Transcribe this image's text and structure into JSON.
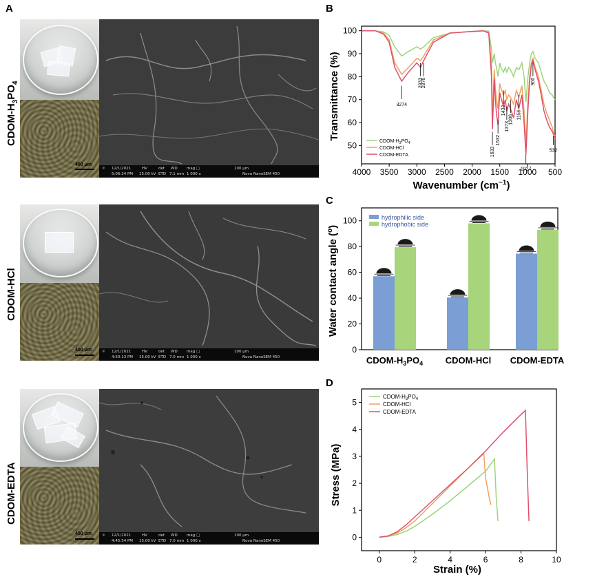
{
  "panels": {
    "A": "A",
    "B": "B",
    "C": "C",
    "D": "D"
  },
  "row_labels": {
    "h3po4_main": "CDOM-H",
    "h3po4_sub3": "3",
    "h3po4_po": "PO",
    "h3po4_sub4": "4",
    "hcl": "CDOM-HCl",
    "edta": "CDOM-EDTA"
  },
  "microscope_scale": "400 μm",
  "sem_scale": "100 μm",
  "sem_rows": [
    {
      "date": "12/1/2021",
      "time": "5:06:24 PM",
      "hv": "15.00 kV",
      "det": "ETD",
      "wd": "7.1 mm",
      "mag": "1 000 x",
      "instrument": "Nova NanoSEM 450"
    },
    {
      "date": "12/1/2021",
      "time": "4:50:13 PM",
      "hv": "15.00 kV",
      "det": "ETD",
      "wd": "7.0 mm",
      "mag": "1 000 x",
      "instrument": "Nova NanoSEM 450"
    },
    {
      "date": "12/1/2021",
      "time": "4:45:54 PM",
      "hv": "15.00 kV",
      "det": "ETD",
      "wd": "7.0 mm",
      "mag": "1 000 x",
      "instrument": "Nova NanoSEM 450"
    }
  ],
  "sem_headers": {
    "hv": "HV",
    "det": "det",
    "wd": "WD",
    "mag": "mag ▢"
  },
  "colors": {
    "green": "#9dd47a",
    "orange": "#f0a060",
    "red": "#e0506a",
    "blue": "#7b9fd4",
    "lightgreen": "#a8d47c"
  },
  "chart_data": [
    {
      "type": "line",
      "panel": "B",
      "xlabel": "Wavenumber (cm",
      "xlabel_sup": "−1",
      "xlabel_end": ")",
      "ylabel": "Transmittance (%)",
      "xlim": [
        4000,
        500
      ],
      "ylim": [
        42,
        102
      ],
      "xticks": [
        4000,
        3500,
        3000,
        2500,
        2000,
        1500,
        1000,
        500
      ],
      "yticks": [
        50,
        60,
        70,
        80,
        90,
        100
      ],
      "legend": {
        "placement": "lower-left",
        "entries": [
          "CDOM-H3PO4",
          "CDOM-HCl",
          "CDOM-EDTA"
        ]
      },
      "legend_text": {
        "h3po4_a": "CDOM-H",
        "h3po4_b": "3",
        "h3po4_c": "PO",
        "h3po4_d": "4",
        "hcl": "CDOM-HCl",
        "edta": "CDOM-EDTA"
      },
      "annotations": [
        "3274",
        "2933",
        "2876",
        "1633",
        "1532",
        "1432",
        "1373",
        "1306",
        "1156",
        "1027",
        "900",
        "532"
      ],
      "series": [
        {
          "name": "CDOM-H3PO4",
          "color": "#9dd47a",
          "x": [
            4000,
            3750,
            3600,
            3500,
            3400,
            3274,
            3150,
            3000,
            2933,
            2876,
            2700,
            2400,
            2100,
            1800,
            1700,
            1650,
            1633,
            1600,
            1580,
            1560,
            1532,
            1500,
            1480,
            1432,
            1400,
            1373,
            1340,
            1306,
            1250,
            1200,
            1156,
            1100,
            1060,
            1027,
            990,
            960,
            930,
            900,
            860,
            800,
            750,
            700,
            650,
            600,
            550,
            532,
            500
          ],
          "y": [
            100,
            100,
            99.5,
            98,
            93,
            89,
            91,
            93,
            92,
            93,
            97,
            99,
            99.5,
            100,
            99.8,
            92,
            86,
            90,
            86,
            84,
            80,
            86,
            84,
            82,
            84,
            82,
            84,
            83,
            80,
            84,
            83,
            86,
            80,
            69,
            80,
            86,
            90,
            91,
            88,
            86,
            82,
            78,
            76,
            73,
            72,
            71,
            70
          ]
        },
        {
          "name": "CDOM-HCl",
          "color": "#f0a060",
          "x": [
            4000,
            3750,
            3600,
            3500,
            3400,
            3274,
            3150,
            3000,
            2933,
            2876,
            2700,
            2400,
            2100,
            1800,
            1700,
            1650,
            1633,
            1600,
            1580,
            1560,
            1532,
            1500,
            1480,
            1432,
            1400,
            1373,
            1340,
            1306,
            1250,
            1200,
            1156,
            1100,
            1060,
            1027,
            990,
            960,
            930,
            900,
            860,
            800,
            750,
            700,
            650,
            600,
            550,
            532,
            500
          ],
          "y": [
            100,
            100,
            99,
            96,
            86,
            81,
            84,
            88,
            87,
            89,
            96,
            99,
            99.5,
            100,
            99.5,
            85,
            62,
            83,
            75,
            70,
            66,
            77,
            75,
            72,
            74,
            70,
            72,
            71,
            68,
            74,
            71,
            76,
            65,
            51,
            70,
            80,
            86,
            88,
            84,
            80,
            74,
            68,
            64,
            61,
            58,
            56,
            54
          ]
        },
        {
          "name": "CDOM-EDTA",
          "color": "#e0506a",
          "x": [
            4000,
            3750,
            3600,
            3500,
            3400,
            3274,
            3150,
            3000,
            2933,
            2876,
            2700,
            2400,
            2100,
            1800,
            1700,
            1650,
            1633,
            1600,
            1580,
            1560,
            1532,
            1500,
            1480,
            1432,
            1400,
            1373,
            1340,
            1306,
            1250,
            1200,
            1156,
            1100,
            1060,
            1027,
            990,
            960,
            930,
            900,
            860,
            800,
            750,
            700,
            650,
            600,
            550,
            532,
            500
          ],
          "y": [
            100,
            100,
            98.5,
            95,
            84,
            78,
            82,
            86,
            84,
            87,
            95,
            99,
            99.5,
            100,
            99,
            80,
            57,
            79,
            70,
            64,
            59,
            73,
            71,
            67,
            70,
            65,
            68,
            66,
            62,
            70,
            66,
            72,
            60,
            46,
            66,
            78,
            85,
            87,
            83,
            78,
            72,
            65,
            61,
            58,
            56,
            55,
            53
          ]
        }
      ]
    },
    {
      "type": "bar",
      "panel": "C",
      "ylabel": "Water contact angle (°)",
      "ylabel_a": "Water contact angle (",
      "ylabel_sup": "o",
      "ylabel_b": ")",
      "ylim": [
        0,
        110
      ],
      "yticks": [
        0,
        20,
        40,
        60,
        80,
        100
      ],
      "categories_a": [
        "CDOM-H",
        "CDOM-HCl",
        "CDOM-EDTA"
      ],
      "cat_sub": {
        "sub3": "3",
        "po": "PO",
        "sub4": "4"
      },
      "legend": {
        "placement": "top-left",
        "entries": [
          "hydrophilic side",
          "hydrophobic side"
        ]
      },
      "series": [
        {
          "name": "hydrophilic side",
          "color": "#7b9fd4",
          "values": [
            57,
            40.5,
            74.5
          ]
        },
        {
          "name": "hydrophobic side",
          "color": "#a8d47c",
          "values": [
            79.5,
            98,
            93
          ]
        }
      ]
    },
    {
      "type": "line",
      "panel": "D",
      "xlabel": "Strain (%)",
      "ylabel": "Stress (MPa)",
      "xlim": [
        -1,
        10
      ],
      "ylim": [
        -0.5,
        5.5
      ],
      "xticks": [
        0,
        2,
        4,
        6,
        8,
        10
      ],
      "yticks": [
        0,
        1,
        2,
        3,
        4,
        5
      ],
      "legend": {
        "placement": "top-left",
        "entries": [
          "CDOM-H3PO4",
          "CDOM-HCl",
          "CDOM-EDTA"
        ]
      },
      "series": [
        {
          "name": "CDOM-H3PO4",
          "color": "#9dd47a",
          "x": [
            0,
            0.5,
            1,
            1.5,
            2,
            3,
            4,
            5,
            6,
            6.5,
            6.6,
            6.7
          ],
          "y": [
            0,
            0.03,
            0.1,
            0.22,
            0.4,
            0.85,
            1.35,
            1.9,
            2.45,
            2.9,
            1.5,
            0.6
          ]
        },
        {
          "name": "CDOM-HCl",
          "color": "#f0a060",
          "x": [
            0,
            0.5,
            1,
            1.5,
            2,
            3,
            4,
            5,
            5.9,
            6.0,
            6.2,
            6.3
          ],
          "y": [
            0,
            0.04,
            0.15,
            0.35,
            0.6,
            1.25,
            1.9,
            2.55,
            3.1,
            2.2,
            1.5,
            1.2
          ]
        },
        {
          "name": "CDOM-EDTA",
          "color": "#e0506a",
          "x": [
            0,
            0.5,
            1,
            1.5,
            2,
            3,
            4,
            5,
            6,
            7,
            8,
            8.25,
            8.35,
            8.45
          ],
          "y": [
            0,
            0.05,
            0.2,
            0.45,
            0.75,
            1.35,
            1.95,
            2.55,
            3.2,
            3.9,
            4.55,
            4.7,
            2.5,
            0.6
          ]
        }
      ]
    }
  ]
}
